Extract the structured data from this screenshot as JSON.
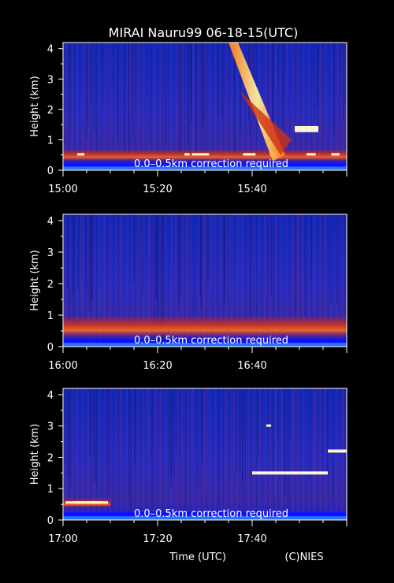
{
  "title": "MIRAI Nauru99 06-18-15(UTC)",
  "footer": {
    "xlabel": "Time (UTC)",
    "credit": "(C)NIES"
  },
  "colors": {
    "background": "#000000",
    "field_low": "#1a2fc8",
    "field_mid": "#4a23b0",
    "cloud_red": "#c8201a",
    "cloud_orange": "#ff8a1e",
    "cloud_yellow": "#fff090",
    "ground_band": "#1010ff"
  },
  "chart_data": [
    {
      "type": "heatmap",
      "title": "MIRAI Nauru99 06-18-15(UTC)",
      "ylabel": "Height (km)",
      "ylim": [
        0,
        4.2
      ],
      "yticks": [
        "0",
        "1",
        "2",
        "3",
        "4"
      ],
      "xticks": [
        "15:00",
        "15:20",
        "15:40"
      ],
      "xlim": [
        "15:00",
        "16:00"
      ],
      "annotation": "0.0–0.5km correction required",
      "features": [
        {
          "kind": "boundary-layer-cloud",
          "time_start": "15:00",
          "time_end": "16:00",
          "height_km": [
            0.3,
            0.7
          ]
        },
        {
          "kind": "precipitation-streak",
          "time_start": "15:35",
          "time_end": "15:46",
          "height_km": [
            0.3,
            4.2
          ]
        },
        {
          "kind": "cloud-base-points",
          "time_start": "15:49",
          "time_end": "15:54",
          "height_km": [
            1.2,
            1.4
          ]
        }
      ]
    },
    {
      "type": "heatmap",
      "ylabel": "Height (km)",
      "ylim": [
        0,
        4.2
      ],
      "yticks": [
        "0",
        "1",
        "2",
        "3",
        "4"
      ],
      "xticks": [
        "16:00",
        "16:20",
        "16:40"
      ],
      "xlim": [
        "16:00",
        "17:00"
      ],
      "annotation": "0.0–0.5km correction required",
      "features": [
        {
          "kind": "boundary-layer-aerosol",
          "time_start": "16:00",
          "time_end": "17:00",
          "height_km": [
            0.3,
            1.0
          ]
        }
      ]
    },
    {
      "type": "heatmap",
      "ylabel": "Height (km)",
      "xlabel": "Time (UTC)",
      "ylim": [
        0,
        4.2
      ],
      "yticks": [
        "0",
        "1",
        "2",
        "3",
        "4"
      ],
      "xticks": [
        "17:00",
        "17:20",
        "17:40"
      ],
      "xlim": [
        "17:00",
        "18:00"
      ],
      "annotation": "0.0–0.5km correction required",
      "features": [
        {
          "kind": "boundary-layer-cloud",
          "time_start": "17:00",
          "time_end": "17:10",
          "height_km": [
            0.4,
            0.7
          ]
        },
        {
          "kind": "cloud-layer",
          "time_start": "17:40",
          "time_end": "17:56",
          "height_km": [
            1.4,
            1.5
          ]
        },
        {
          "kind": "cloud-point",
          "time_start": "17:43",
          "time_end": "17:44",
          "height_km": [
            3.0,
            3.0
          ]
        },
        {
          "kind": "cloud-layer",
          "time_start": "17:56",
          "time_end": "18:00",
          "height_km": [
            2.1,
            2.2
          ]
        }
      ]
    }
  ]
}
